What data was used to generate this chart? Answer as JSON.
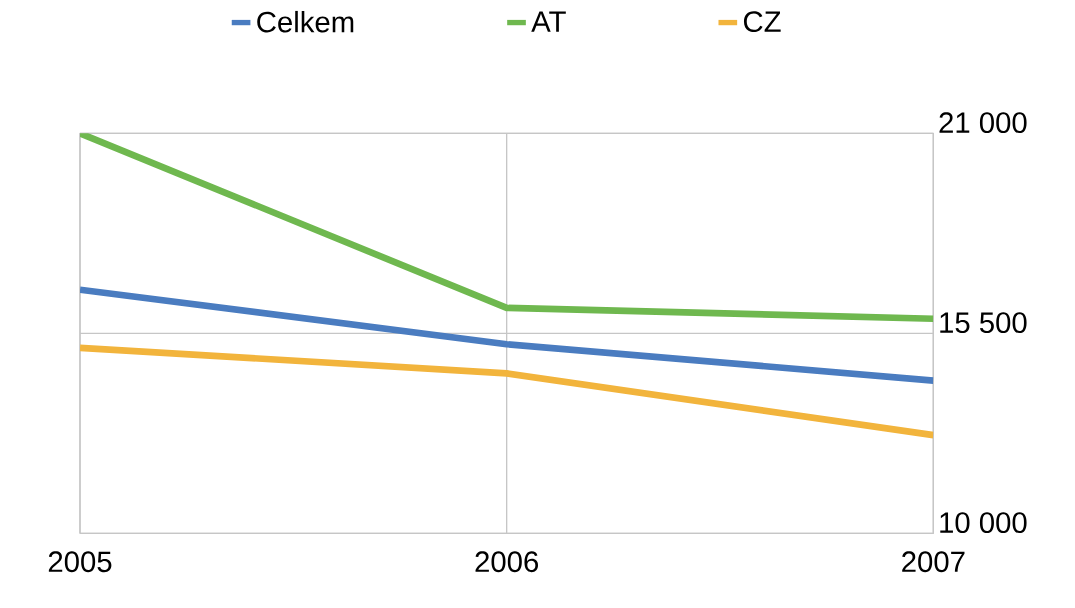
{
  "chart_data": {
    "type": "line",
    "categories": [
      "2005",
      "2006",
      "2007"
    ],
    "series": [
      {
        "name": "Celkem",
        "color": "#4a7cc0",
        "values": [
          16700,
          15200,
          14200
        ]
      },
      {
        "name": "AT",
        "color": "#6fb84f",
        "values": [
          21000,
          16200,
          15900
        ]
      },
      {
        "name": "CZ",
        "color": "#f2b43c",
        "values": [
          15100,
          14400,
          12700
        ]
      }
    ],
    "ylim": [
      10000,
      21000
    ],
    "yticks": [
      {
        "value": 10000,
        "label": "10 000"
      },
      {
        "value": 15500,
        "label": "15 500"
      },
      {
        "value": 21000,
        "label": "21 000"
      }
    ],
    "grid": true,
    "legend": "top",
    "line_style": "solid"
  }
}
